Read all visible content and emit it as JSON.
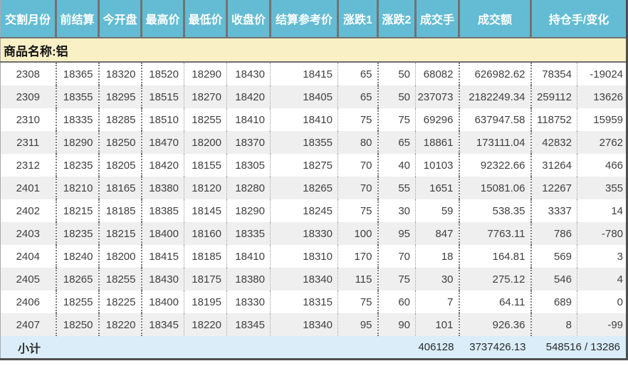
{
  "table": {
    "commodity_label": "商品名称:铝",
    "columns": [
      {
        "key": "delivery-month",
        "label": "交割月份"
      },
      {
        "key": "prev-settle",
        "label": "前结算"
      },
      {
        "key": "open",
        "label": "今开盘"
      },
      {
        "key": "high",
        "label": "最高价"
      },
      {
        "key": "low",
        "label": "最低价"
      },
      {
        "key": "close",
        "label": "收盘价"
      },
      {
        "key": "settle-ref",
        "label": "结算参考价"
      },
      {
        "key": "change-1",
        "label": "涨跌1"
      },
      {
        "key": "change-2",
        "label": "涨跌2"
      },
      {
        "key": "volume",
        "label": "成交手"
      },
      {
        "key": "turnover",
        "label": "成交额"
      },
      {
        "key": "open-interest-change",
        "label": "持仓手/变化"
      }
    ],
    "rows": [
      [
        "2308",
        "18365",
        "18320",
        "18520",
        "18290",
        "18430",
        "18415",
        "65",
        "50",
        "68082",
        "626982.62",
        "78354",
        "-19024"
      ],
      [
        "2309",
        "18355",
        "18295",
        "18515",
        "18270",
        "18420",
        "18405",
        "65",
        "50",
        "237073",
        "2182249.34",
        "259112",
        "13626"
      ],
      [
        "2310",
        "18335",
        "18285",
        "18510",
        "18255",
        "18410",
        "18410",
        "75",
        "75",
        "69296",
        "637947.58",
        "118752",
        "15959"
      ],
      [
        "2311",
        "18290",
        "18250",
        "18470",
        "18200",
        "18370",
        "18355",
        "80",
        "65",
        "18861",
        "173111.04",
        "42832",
        "2762"
      ],
      [
        "2312",
        "18235",
        "18205",
        "18420",
        "18155",
        "18305",
        "18275",
        "70",
        "40",
        "10103",
        "92322.66",
        "31264",
        "466"
      ],
      [
        "2401",
        "18210",
        "18165",
        "18380",
        "18120",
        "18280",
        "18265",
        "70",
        "55",
        "1651",
        "15081.06",
        "12267",
        "355"
      ],
      [
        "2402",
        "18215",
        "18185",
        "18385",
        "18145",
        "18290",
        "18245",
        "75",
        "30",
        "59",
        "538.35",
        "3337",
        "14"
      ],
      [
        "2403",
        "18235",
        "18215",
        "18400",
        "18160",
        "18335",
        "18330",
        "100",
        "95",
        "847",
        "7763.11",
        "786",
        "-780"
      ],
      [
        "2404",
        "18240",
        "18200",
        "18415",
        "18185",
        "18410",
        "18310",
        "170",
        "70",
        "18",
        "164.81",
        "569",
        "3"
      ],
      [
        "2405",
        "18265",
        "18255",
        "18430",
        "18175",
        "18380",
        "18340",
        "115",
        "75",
        "30",
        "275.12",
        "546",
        "4"
      ],
      [
        "2406",
        "18255",
        "18225",
        "18400",
        "18195",
        "18330",
        "18315",
        "75",
        "60",
        "7",
        "64.11",
        "689",
        "0"
      ],
      [
        "2407",
        "18250",
        "18220",
        "18345",
        "18220",
        "18345",
        "18340",
        "95",
        "90",
        "101",
        "926.36",
        "8",
        "-99"
      ]
    ],
    "subtotal": {
      "label": "小计",
      "volume": "406128",
      "turnover": "3737426.13",
      "open_interest_change": "548516 / 13286"
    }
  },
  "colors": {
    "header_bg": "#63bcd3",
    "header_text": "#ffffff",
    "commodity_bg": "#faf0c6",
    "row_bg": "#ffffff",
    "row_alt_bg": "#efefef",
    "subtotal_bg": "#daedf8",
    "outer_border": "#4f4f4f"
  }
}
